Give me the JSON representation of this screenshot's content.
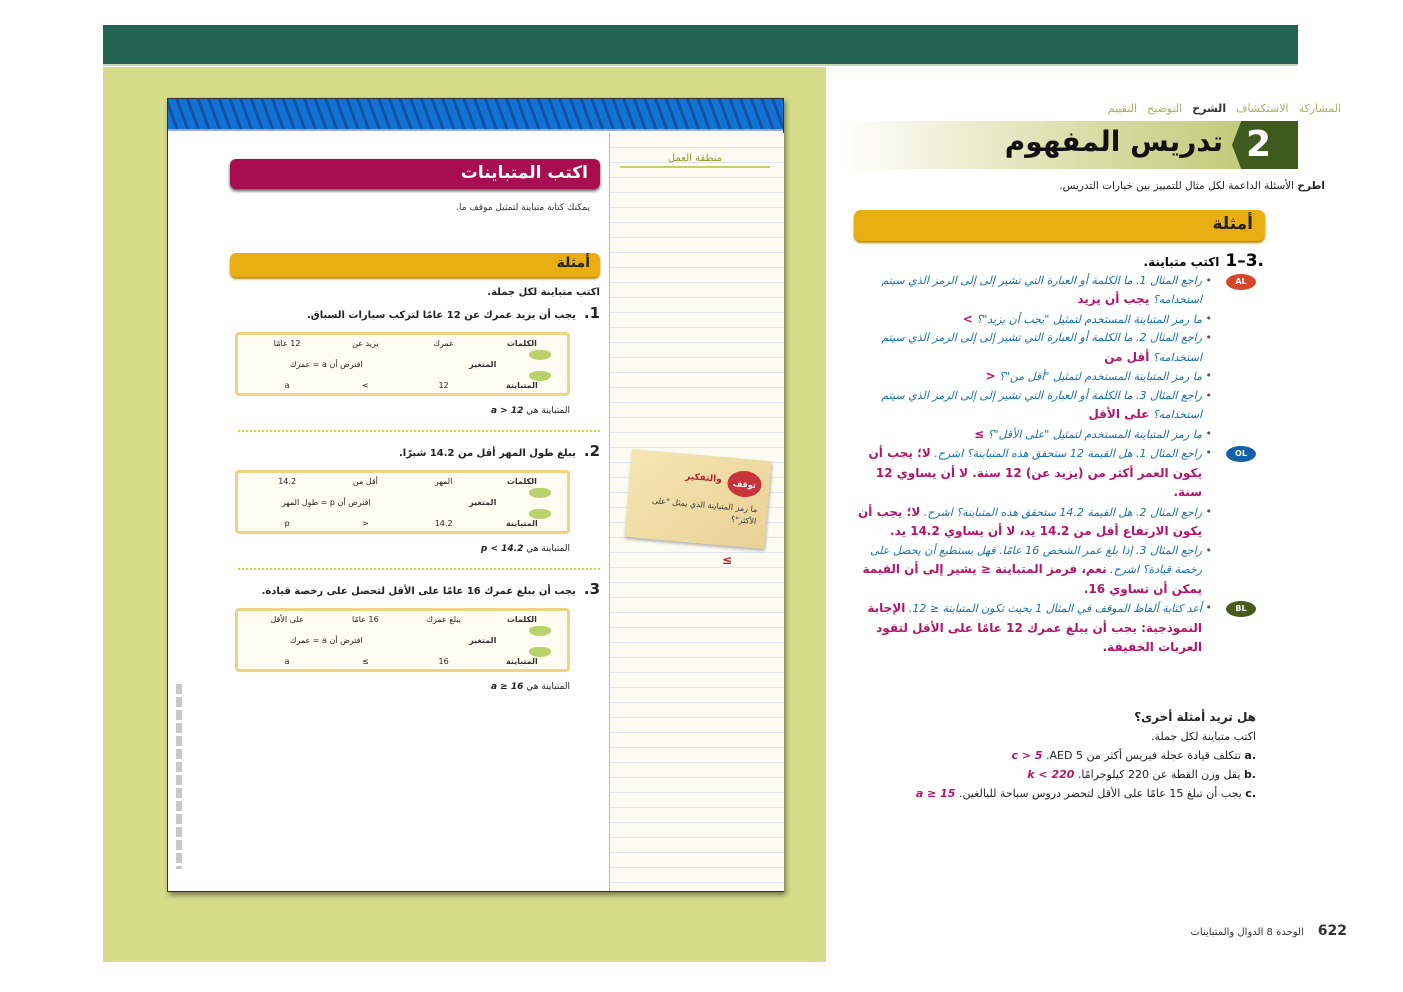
{
  "colors": {
    "top_bar": "#236150",
    "left_bg": "#d6dc8a",
    "lesson_banner": "#a80d4f",
    "examples_banner": "#e8ae12",
    "answer": "#b5146b",
    "question": "#1a6fb0",
    "badge_AL": "#d4472a",
    "badge_OL": "#1461a8",
    "badge_BL": "#4b5a1c"
  },
  "student_page": {
    "lesson_title": "اكتب المتباينات",
    "intro": "يمكنك كتابة متباينة لتمثيل موقف ما.",
    "examples_heading": "أمثلة",
    "instruction": "اكتب متباينة لكل جملة.",
    "row_labels": {
      "words": "الكلمات",
      "variable": "المتغير",
      "inequality": "المتباينة"
    },
    "result_prefix": "المتباينة هي",
    "examples": [
      {
        "num": "1.",
        "text": "يجب أن يزيد عمرك عن 12 عامًا لتركب سيارات السباق.",
        "words": [
          "عمرك",
          "يزيد عن",
          "12 عامًا"
        ],
        "variable": "افترض أن a = عمرك",
        "inequality": [
          "12",
          ">",
          "a"
        ],
        "result": "a > 12"
      },
      {
        "num": "2.",
        "text": "يبلغ طول المهر أقل من 14.2 شبرًا.",
        "words": [
          "المهر",
          "أقل من",
          "14.2"
        ],
        "variable": "افترض أن p = طول المهر",
        "inequality": [
          "14.2",
          "<",
          "p"
        ],
        "result": "p < 14.2"
      },
      {
        "num": "3.",
        "text": "يجب أن يبلغ عمرك 16 عامًا على الأقل لتحصل على رخصة قيادة.",
        "words": [
          "يبلغ عمرك",
          "16 عامًا",
          "على الأقل"
        ],
        "variable": "افترض أن a = عمرك",
        "inequality": [
          "16",
          "≥",
          "a"
        ],
        "result": "a ≥ 16"
      }
    ],
    "sidebar": {
      "title": "منطقة العمل",
      "stamp": "توقف",
      "note_label": "والتفكير",
      "note_question": "ما رمز المتباينة الذي يمثل \"على الأكثر\"؟",
      "note_answer": "≤"
    }
  },
  "teacher_page": {
    "nav": [
      "المشاركة",
      "الاستكشاف",
      "الشرح",
      "التوضيح",
      "التقييم"
    ],
    "nav_active": "الشرح",
    "section_number": "2",
    "title": "تدريس المفهوم",
    "lead_bold": "اطرح",
    "lead": "الأسئلة الداعمة لكل مثال للتمييز بين خيارات التدريس.",
    "examples_heading": "أمثلة",
    "range": "1–3.",
    "range_text": "اكتب متباينة.",
    "groups": [
      {
        "badge": "AL",
        "items": [
          {
            "q": "راجع المثال 1. ما الكلمة أو العبارة التي تشير إلى إلى الرمز الذي سيتم استخدامه؟",
            "a": "يجب أن يزيد"
          },
          {
            "q": "ما رمز المتباينة المستخدم لتمثيل \"يجب أن يزيد\"؟",
            "a": ">"
          },
          {
            "q": "راجع المثال 2. ما الكلمة أو العبارة التي تشير إلى إلى الرمز الذي سيتم استخدامه؟",
            "a": "أقل من"
          },
          {
            "q": "ما رمز المتباينة المستخدم لتمثيل \"أقل من\"؟",
            "a": "<"
          },
          {
            "q": "راجع المثال 3. ما الكلمة أو العبارة التي تشير إلى إلى الرمز الذي سيتم استخدامه؟",
            "a": "على الأقل"
          },
          {
            "q": "ما رمز المتباينة المستخدم لتمثيل \"على الأقل\"؟",
            "a": "≥"
          }
        ]
      },
      {
        "badge": "OL",
        "items": [
          {
            "q": "راجع المثال 1. هل القيمة 12 ستحقق هذه المتباينة؟ اشرح.",
            "a": "لا؛ يجب أن يكون العمر أكثر من (يزيد عن) 12 سنة. لا أن يساوي 12 سنة."
          },
          {
            "q": "راجع المثال 2. هل القيمة 14.2 ستحقق هذه المتباينة؟ اشرح.",
            "a": "لا؛ يجب أن يكون الارتفاع أقل من 14.2 يد، لا أن يساوي 14.2 يد."
          },
          {
            "q": "راجع المثال 3. إذا بلغ عمر الشخص 16 عامًا. فهل يستطيع أن يحصل على رخصة قيادة؟ اشرح.",
            "a": "نعم، فرمز المتباينة ≤ يشير إلى أن القيمة يمكن أن تساوي 16."
          }
        ]
      },
      {
        "badge": "BL",
        "items": [
          {
            "q": "أعد كتابة ألفاظ الموقف في المثال 1 بحيث تكون المتباينة ≤ 12.",
            "a": "الإجابة النموذجية: يجب أن يبلغ عمرك 12 عامًا على الأقل لتقود العربات الخفيفة."
          }
        ]
      }
    ],
    "more": {
      "heading": "هل تريد أمثلة أخرى؟",
      "instruction": "اكتب متباينة لكل جملة.",
      "items": [
        {
          "label": "a.",
          "text": "تتكلف قيادة عجلة فيريس أكثر من 5 AED.",
          "answer": "c > 5"
        },
        {
          "label": "b.",
          "text": "يقل وزن القطة عن 220 كيلوجرامًا.",
          "answer": "k < 220"
        },
        {
          "label": "c.",
          "text": "يجب أن تبلغ 15 عامًا على الأقل لتحضر دروس سباحة للبالغين.",
          "answer": "a ≥ 15"
        }
      ]
    },
    "footer": {
      "page": "622",
      "unit": "الوحدة 8 الدوال والمتباينات"
    }
  }
}
